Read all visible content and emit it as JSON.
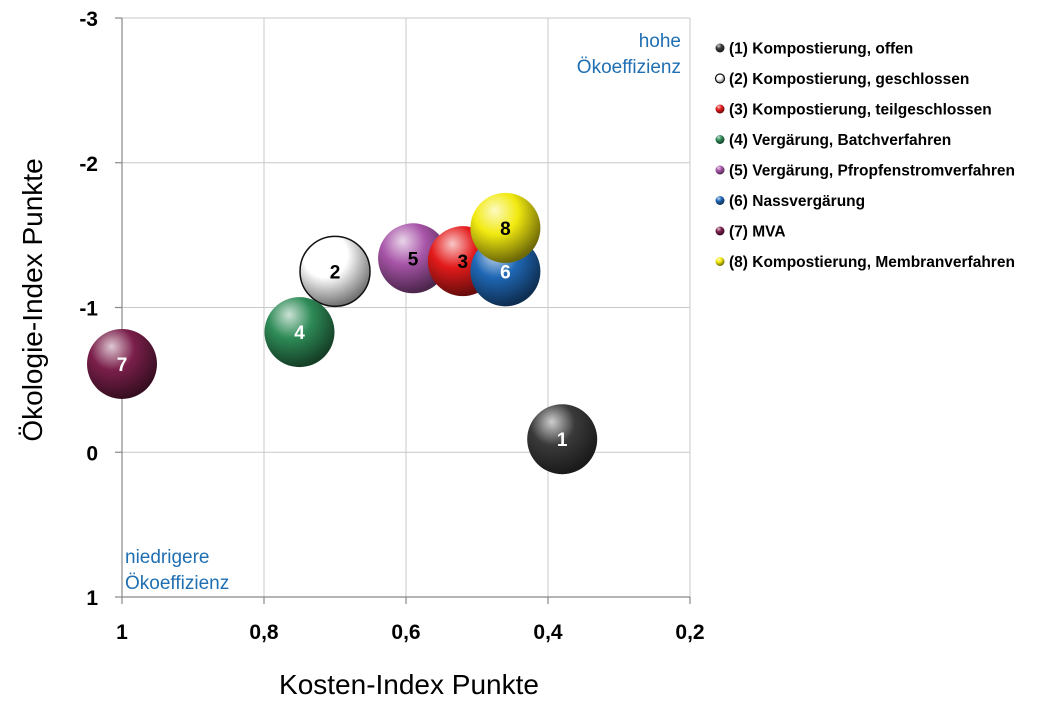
{
  "chart_data": {
    "type": "scatter",
    "xlabel": "Kosten-Index Punkte",
    "ylabel": "Ökologie-Index Punkte",
    "xlim": [
      1,
      0.2
    ],
    "ylim": [
      1,
      -3
    ],
    "x_axis_reversed": true,
    "y_axis_reversed": true,
    "grid": true,
    "legend_position": "right",
    "x_ticks": [
      "1",
      "0,8",
      "0,6",
      "0,4",
      "0,2"
    ],
    "y_ticks": [
      "-3",
      "-2",
      "-1",
      "0",
      "1"
    ],
    "annotations": {
      "top_right": [
        "hohe",
        "Ökoeffizienz"
      ],
      "bottom_left": [
        "niedrigere",
        "Ökoeffizienz"
      ]
    },
    "points": [
      {
        "label": "1",
        "legend": "(1) Kompostierung, offen",
        "x": 0.38,
        "y": -0.09,
        "color": "#3a3a3a",
        "text_color": "#ffffff"
      },
      {
        "label": "2",
        "legend": "(2) Kompostierung, geschlossen",
        "x": 0.7,
        "y": -1.25,
        "color": "#ffffff",
        "text_color": "#000000"
      },
      {
        "label": "3",
        "legend": "(3) Kompostierung, teilgeschlossen",
        "x": 0.52,
        "y": -1.32,
        "color": "#e41b1b",
        "text_color": "#000000"
      },
      {
        "label": "4",
        "legend": "(4) Vergärung, Batchverfahren",
        "x": 0.75,
        "y": -0.83,
        "color": "#2e8b57",
        "text_color": "#ffffff"
      },
      {
        "label": "5",
        "legend": "(5) Vergärung, Pfropfenstromverfahren",
        "x": 0.59,
        "y": -1.34,
        "color": "#a855a8",
        "text_color": "#000000"
      },
      {
        "label": "6",
        "legend": "(6) Nassvergärung",
        "x": 0.46,
        "y": -1.25,
        "color": "#1f67b5",
        "text_color": "#ffffff"
      },
      {
        "label": "7",
        "legend": "(7) MVA",
        "x": 1.0,
        "y": -0.61,
        "color": "#7a1f4a",
        "text_color": "#ffffff"
      },
      {
        "label": "8",
        "legend": "(8) Kompostierung, Membranverfahren",
        "x": 0.46,
        "y": -1.55,
        "color": "#f2ea10",
        "text_color": "#000000"
      }
    ]
  }
}
